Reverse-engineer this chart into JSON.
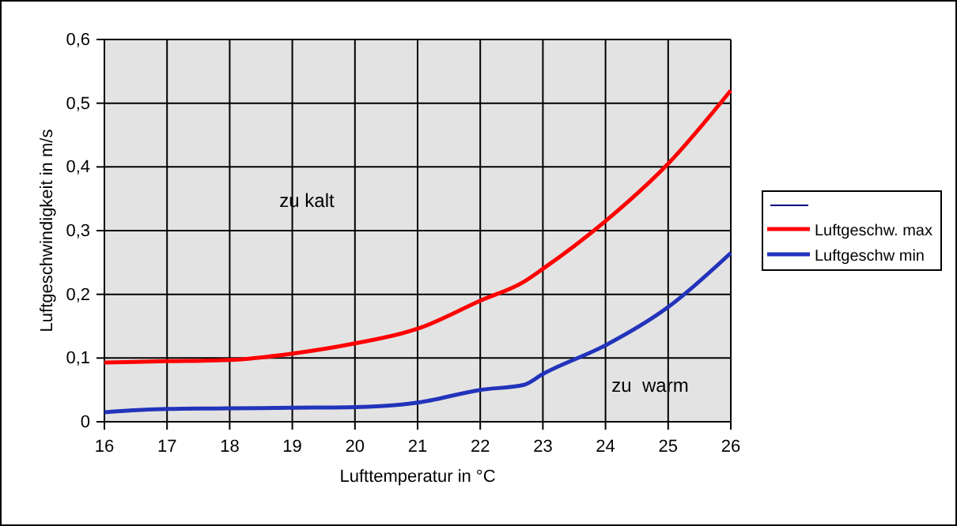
{
  "chart_data": {
    "type": "line",
    "xlabel": "Lufttemperatur in °C",
    "ylabel": "Luftgeschwindigkeit in m/s",
    "x": [
      16,
      17,
      18,
      19,
      20,
      21,
      22,
      22.7,
      23,
      24,
      25,
      26
    ],
    "series": [
      {
        "name": "Luftgeschw. max",
        "color": "#ff0000",
        "values": [
          0.093,
          0.095,
          0.097,
          0.107,
          0.123,
          0.146,
          0.19,
          0.22,
          0.24,
          0.315,
          0.405,
          0.52
        ]
      },
      {
        "name": "Luftgeschw min",
        "color": "#2233bb",
        "values": [
          0.015,
          0.02,
          0.021,
          0.022,
          0.023,
          0.03,
          0.05,
          0.058,
          0.075,
          0.12,
          0.18,
          0.265
        ]
      }
    ],
    "xlim": [
      16,
      26
    ],
    "xticks": [
      16,
      17,
      18,
      19,
      20,
      21,
      22,
      23,
      24,
      25,
      26
    ],
    "ylim": [
      0,
      0.6
    ],
    "yticks": [
      0,
      {
        "value": 0.1,
        "label": "0,1"
      },
      {
        "value": 0.2,
        "label": "0,2"
      },
      {
        "value": 0.3,
        "label": "0,3"
      },
      {
        "value": 0.4,
        "label": "0,4"
      },
      {
        "value": 0.5,
        "label": "0,5"
      },
      {
        "value": 0.6,
        "label": "0,6"
      }
    ],
    "annotations": [
      "zu kalt",
      "zu  warm"
    ],
    "grid": true,
    "legend": "right",
    "marker": "none",
    "line_style": "solid"
  }
}
